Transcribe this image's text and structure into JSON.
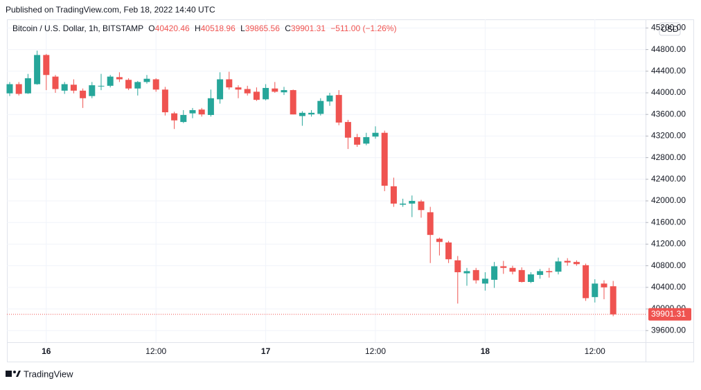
{
  "header": {
    "published": "Published on TradingView.com, Feb 18, 2022 14:40 UTC"
  },
  "footer": {
    "brand": "TradingView"
  },
  "chart_data": {
    "type": "candlestick",
    "title": "Bitcoin / U.S. Dollar, 1h, BITSTAMP",
    "ohlc_letters": {
      "open": "O",
      "high": "H",
      "low": "L",
      "close": "C"
    },
    "change_label": "−511.00 (−1.26%)",
    "currency": "USD",
    "up_color": "#26a69a",
    "down_color": "#ef5350",
    "grid": true,
    "categories": [
      null,
      null,
      null,
      null,
      "16",
      null,
      null,
      null,
      null,
      null,
      null,
      null,
      null,
      null,
      null,
      null,
      "12:00",
      null,
      null,
      null,
      null,
      null,
      null,
      null,
      null,
      null,
      null,
      null,
      "17",
      null,
      null,
      null,
      null,
      null,
      null,
      null,
      null,
      null,
      null,
      null,
      "12:00",
      null,
      null,
      null,
      null,
      null,
      null,
      null,
      null,
      null,
      null,
      null,
      "18",
      null,
      null,
      null,
      null,
      null,
      null,
      null,
      null,
      null,
      null,
      null,
      "12:00",
      null,
      null
    ],
    "open": [
      43990,
      44160,
      43990,
      44160,
      44700,
      44300,
      44040,
      44150,
      44040,
      43940,
      44120,
      44130,
      44290,
      44240,
      44080,
      44200,
      44250,
      44060,
      43620,
      43460,
      43620,
      43690,
      43590,
      43880,
      44250,
      44100,
      44070,
      44020,
      43880,
      44080,
      44010,
      44050,
      43570,
      43600,
      43610,
      43840,
      43960,
      43460,
      43180,
      43060,
      43190,
      43260,
      42270,
      41930,
      41950,
      41990,
      41790,
      41300,
      41230,
      40900,
      40660,
      40720,
      40470,
      40540,
      40790,
      40760,
      40720,
      40500,
      40630,
      40700,
      40690,
      40890,
      40870,
      40810,
      40220,
      40470,
      40420.46
    ],
    "high": [
      44200,
      44200,
      44350,
      44780,
      44720,
      44330,
      44200,
      44250,
      44080,
      44200,
      44350,
      44330,
      44380,
      44270,
      44220,
      44330,
      44270,
      44110,
      43650,
      43680,
      43720,
      43720,
      44060,
      44380,
      44390,
      44140,
      44130,
      44100,
      44160,
      44200,
      44110,
      44060,
      43660,
      43680,
      43900,
      44000,
      44050,
      43500,
      43240,
      43260,
      43380,
      43300,
      42430,
      42040,
      42100,
      42020,
      41890,
      41320,
      41260,
      40980,
      40760,
      40760,
      40680,
      40870,
      40890,
      40800,
      40770,
      40680,
      40740,
      40760,
      40950,
      40940,
      40900,
      40840,
      40550,
      40530,
      40518.96
    ],
    "low": [
      43940,
      43950,
      43980,
      44150,
      44050,
      44000,
      43980,
      43990,
      43720,
      43900,
      44050,
      44100,
      44200,
      44050,
      43950,
      44170,
      44020,
      43580,
      43330,
      43440,
      43530,
      43560,
      43560,
      43800,
      44060,
      43900,
      43950,
      43850,
      43860,
      44000,
      43960,
      43600,
      43390,
      43560,
      43580,
      43760,
      43400,
      42960,
      43000,
      43030,
      43150,
      42180,
      41890,
      41890,
      41700,
      41690,
      40850,
      40990,
      40850,
      40100,
      40430,
      40470,
      40340,
      40390,
      40650,
      40640,
      40490,
      40480,
      40560,
      40580,
      40640,
      40800,
      40800,
      40150,
      40120,
      40180,
      39865.56
    ],
    "close": [
      44160,
      43980,
      44270,
      44700,
      44330,
      44070,
      44160,
      44040,
      43900,
      44140,
      44130,
      44300,
      44250,
      44080,
      44200,
      44260,
      44060,
      43640,
      43490,
      43590,
      43680,
      43600,
      43900,
      44250,
      44100,
      44060,
      43990,
      43870,
      44090,
      44020,
      44050,
      43600,
      43630,
      43630,
      43850,
      43950,
      43450,
      43170,
      43040,
      43180,
      43260,
      42280,
      41950,
      41950,
      42000,
      41830,
      41370,
      41240,
      40920,
      40680,
      40700,
      40530,
      40560,
      40790,
      40760,
      40690,
      40500,
      40640,
      40700,
      40680,
      40880,
      40860,
      40830,
      40200,
      40470,
      40400,
      39901.31
    ],
    "ylim": [
      39385,
      45333
    ],
    "yticks": [
      {
        "value": 39600,
        "label": "39600.00"
      },
      {
        "value": 40000,
        "label": "40000.00"
      },
      {
        "value": 40400,
        "label": "40400.00"
      },
      {
        "value": 40800,
        "label": "40800.00"
      },
      {
        "value": 41200,
        "label": "41200.00"
      },
      {
        "value": 41600,
        "label": "41600.00"
      },
      {
        "value": 42000,
        "label": "42000.00"
      },
      {
        "value": 42400,
        "label": "42400.00"
      },
      {
        "value": 42800,
        "label": "42800.00"
      },
      {
        "value": 43200,
        "label": "43200.00"
      },
      {
        "value": 43600,
        "label": "43600.00"
      },
      {
        "value": 44000,
        "label": "44000.00"
      },
      {
        "value": 44400,
        "label": "44400.00"
      },
      {
        "value": 44800,
        "label": "44800.00"
      },
      {
        "value": 45200,
        "label": "45200.00"
      }
    ]
  }
}
